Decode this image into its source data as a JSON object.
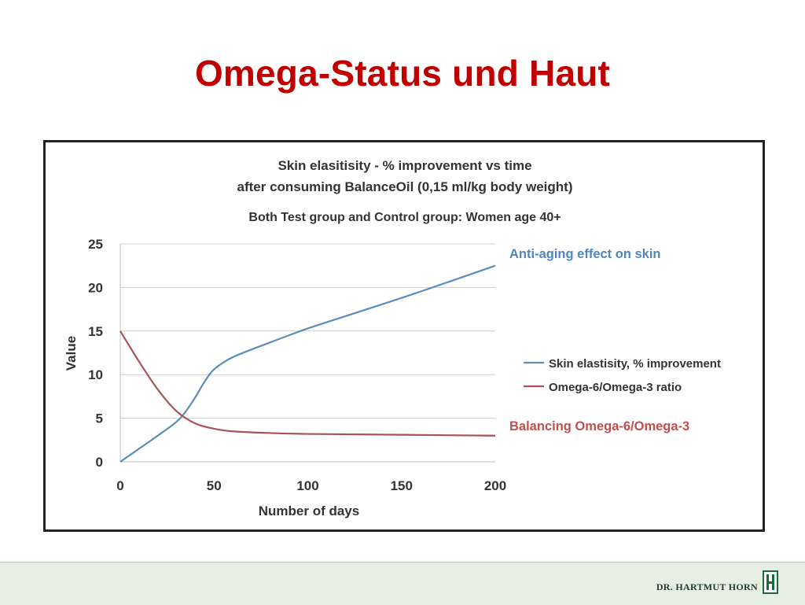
{
  "slide": {
    "title": "Omega-Status und Haut",
    "footer": "DR. HARTMUT HORN",
    "logo_icon": "hh-monogram-icon"
  },
  "chart_data": {
    "type": "line",
    "title_lines": [
      "Skin elasitisity - % improvement  vs time",
      "after consuming BalanceOil (0,15 ml/kg body weight)"
    ],
    "subtitle": "Both Test group and Control group: Women age 40+",
    "xlabel": "Number of days",
    "ylabel": "Value",
    "xlim": [
      0,
      200
    ],
    "ylim": [
      0,
      25
    ],
    "xticks": [
      "0",
      "50",
      "100",
      "150",
      "200"
    ],
    "yticks": [
      "0",
      "5",
      "10",
      "15",
      "20",
      "25"
    ],
    "grid": true,
    "legend_position": "right",
    "series": [
      {
        "name": "Skin elastisity, % improvement",
        "color": "#5b8db8",
        "x": [
          0,
          10,
          20,
          30,
          35,
          40,
          45,
          50,
          60,
          80,
          100,
          120,
          150,
          180,
          200
        ],
        "y": [
          0,
          1.5,
          3,
          4.6,
          5.8,
          7.4,
          9.2,
          10.6,
          12,
          13.7,
          15.3,
          16.7,
          18.8,
          21,
          22.5
        ]
      },
      {
        "name": "Omega-6/Omega-3 ratio",
        "color": "#a8555a",
        "x": [
          0,
          10,
          20,
          30,
          40,
          50,
          60,
          80,
          100,
          150,
          200
        ],
        "y": [
          15,
          11.5,
          8.3,
          5.8,
          4.4,
          3.8,
          3.5,
          3.3,
          3.2,
          3.1,
          3.0
        ]
      }
    ],
    "annotations": [
      {
        "text": "Anti-aging effect on skin",
        "color": "#4f86c0"
      },
      {
        "text": "Balancing Omega-6/Omega-3",
        "color": "#c0504d"
      }
    ]
  }
}
